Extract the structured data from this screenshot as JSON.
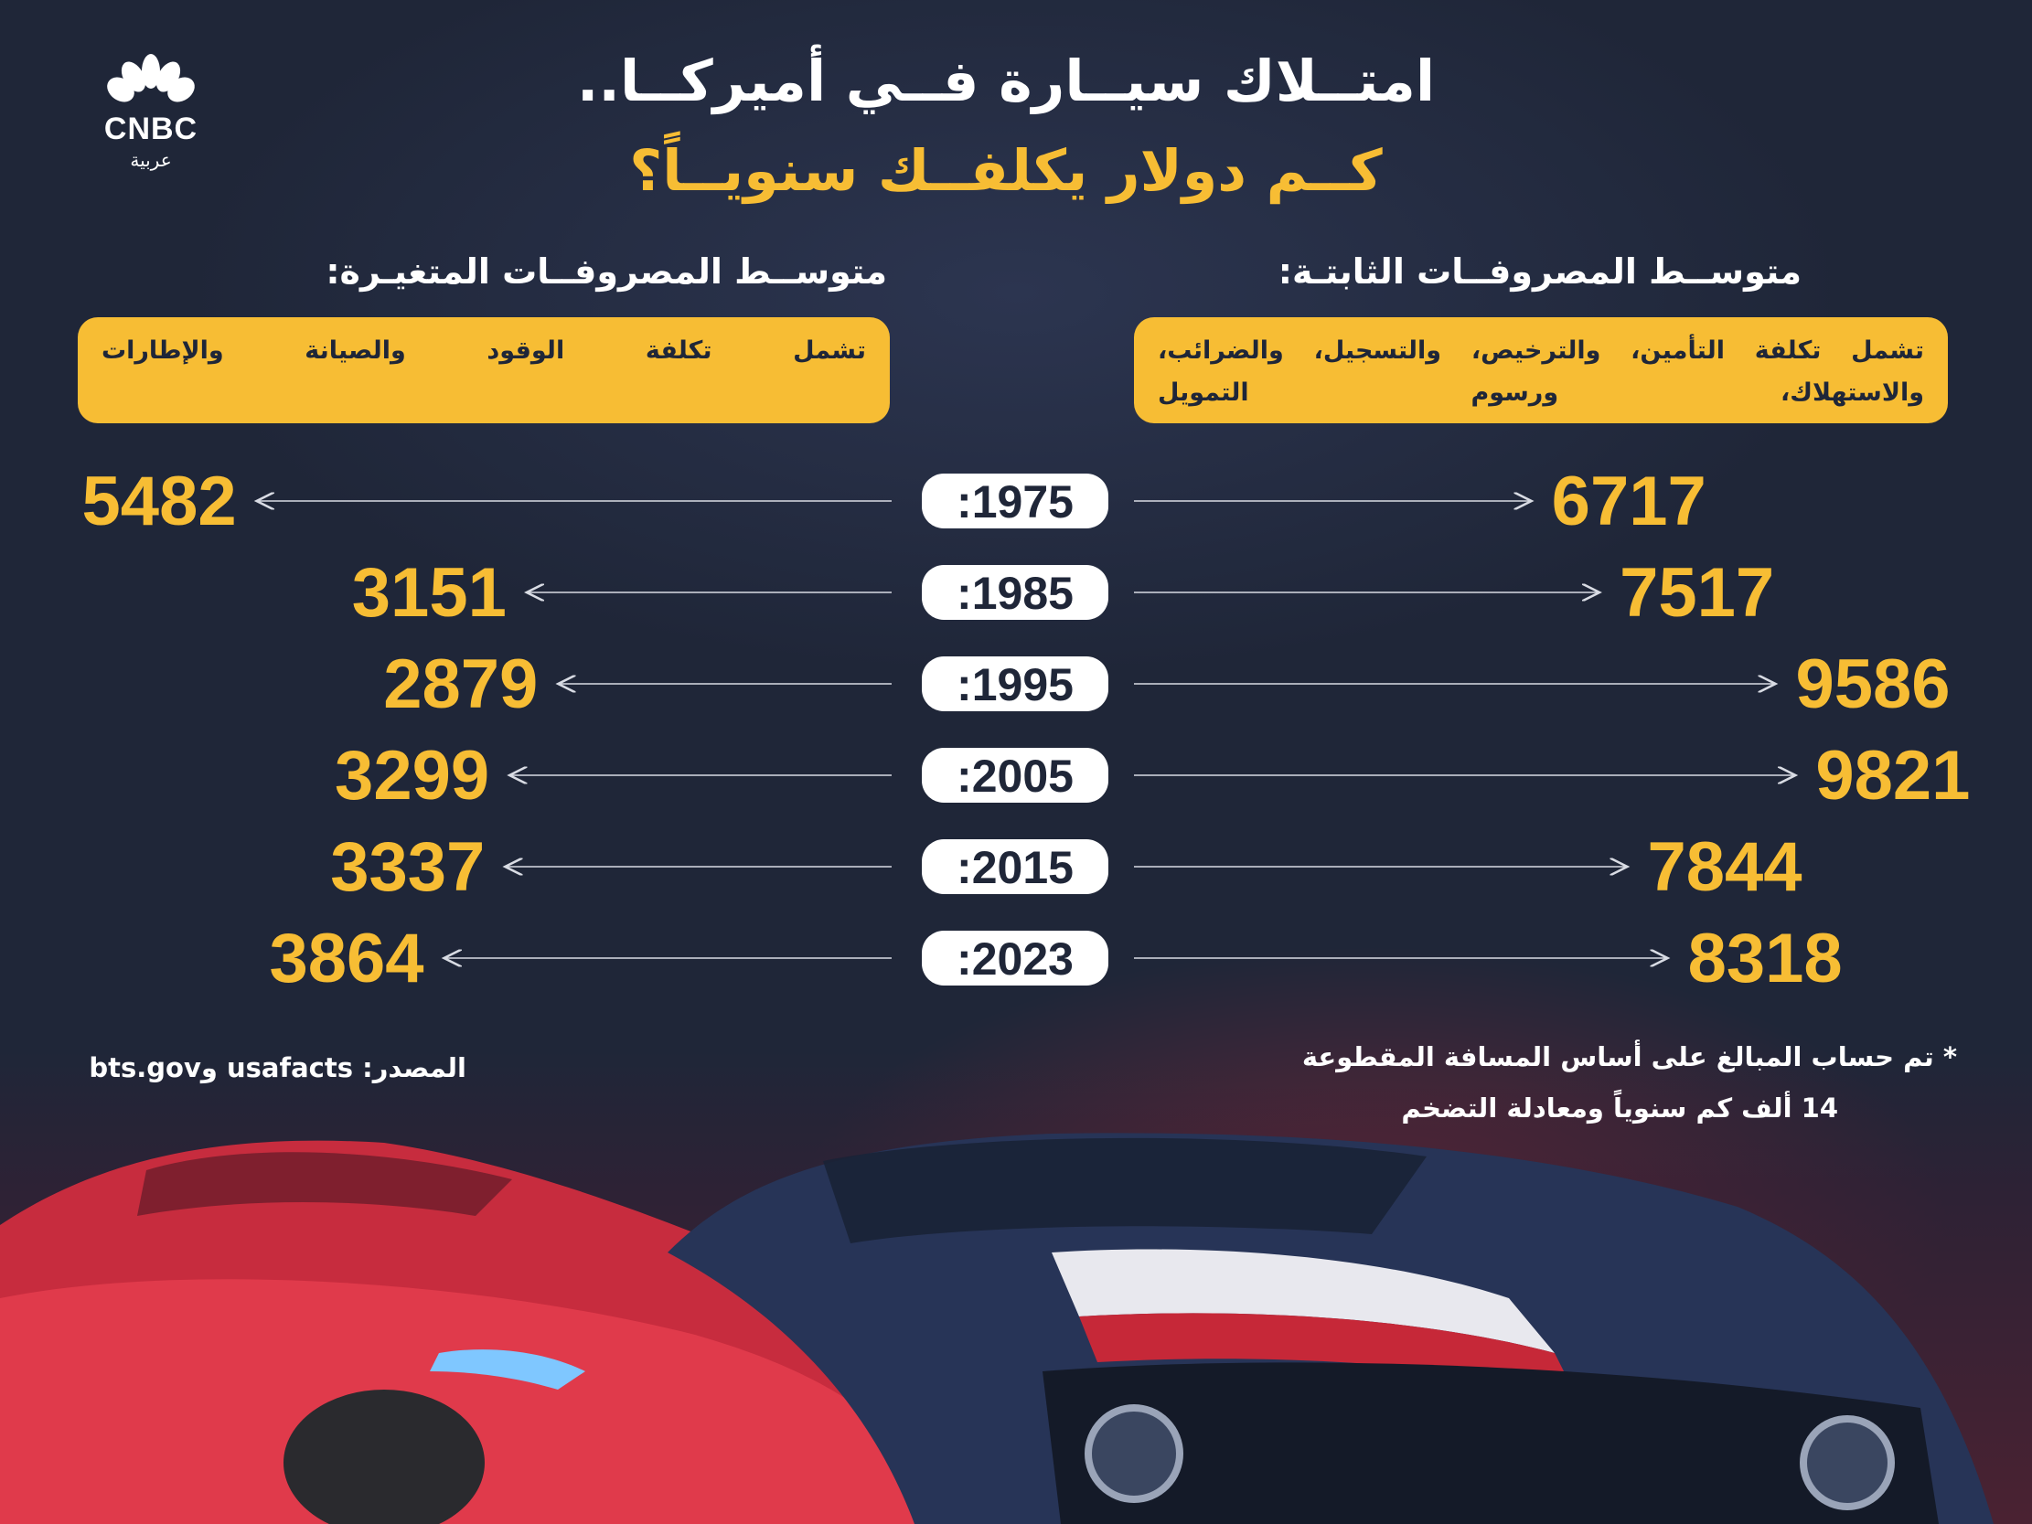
{
  "logo": {
    "name": "CNBC",
    "sub": "عربية"
  },
  "title": {
    "line1": "امتــلاك سيــارة فــي أميركــا..",
    "line2": "كــم دولار يكلفــك سنويــاً؟"
  },
  "fixed": {
    "heading": "متوســط المصروفــات الثابتـة:",
    "note": "تشمل تكلفة التأمين، والترخيص، والتسجيل، والضرائب، والاستهلاك، ورسوم التمويل"
  },
  "variable": {
    "heading": "متوســط المصروفــات المتغيـرة:",
    "note": "تشمل تكلفة الوقود والصيانة والإطارات"
  },
  "footnote": {
    "calc_line1": "* تم حساب المبالغ على أساس المسافة المقطوعة",
    "calc_line2": "14 ألف كم سنوياً ومعادلة التضخم",
    "source": "المصدر: usafacts وbts.gov"
  },
  "colors": {
    "accent": "#f7bd34",
    "background": "#222a3d",
    "pill": "#ffffff",
    "arrow": "#d9dce4"
  },
  "chart_data": {
    "type": "bar",
    "categories": [
      "1975",
      "1985",
      "1995",
      "2005",
      "2015",
      "2023"
    ],
    "category_labels": [
      ":1975",
      ":1985",
      ":1995",
      ":2005",
      ":2015",
      ":2023"
    ],
    "series": [
      {
        "name": "متوسط المصروفات الثابتة",
        "values": [
          6717,
          7517,
          9586,
          9821,
          7844,
          8318
        ]
      },
      {
        "name": "متوسط المصروفات المتغيرة",
        "values": [
          5482,
          3151,
          2879,
          3299,
          3337,
          3864
        ]
      }
    ]
  }
}
